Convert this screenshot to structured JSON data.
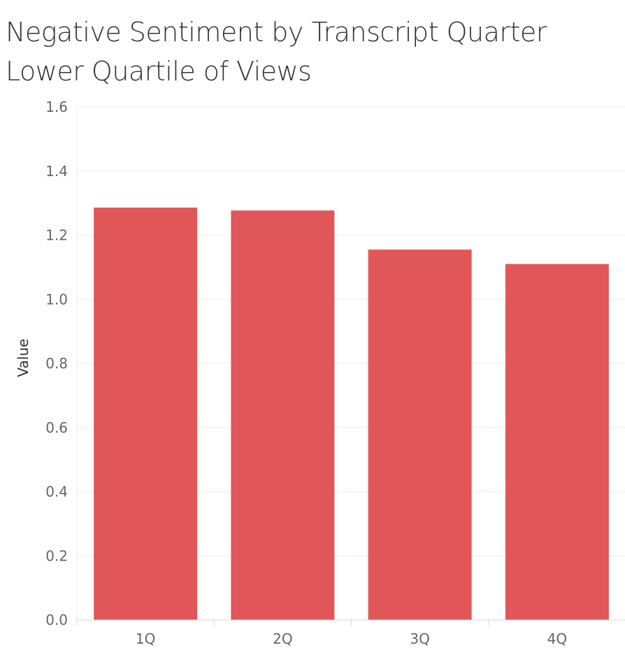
{
  "chart_data": {
    "type": "bar",
    "title": "Negative Sentiment by Transcript Quarter",
    "subtitle": "Lower Quartile of Views",
    "xlabel": "",
    "ylabel": "Value",
    "categories": [
      "1Q",
      "2Q",
      "3Q",
      "4Q"
    ],
    "values": [
      1.286,
      1.277,
      1.155,
      1.11
    ],
    "ylim": [
      0,
      1.6
    ],
    "yticks": [
      0.0,
      0.2,
      0.4,
      0.6,
      0.8,
      1.0,
      1.2,
      1.4,
      1.6
    ],
    "ytick_labels": [
      "0.0",
      "0.2",
      "0.4",
      "0.6",
      "0.8",
      "1.0",
      "1.2",
      "1.4",
      "1.6"
    ],
    "grid": true,
    "colors": {
      "bar": "#E15759",
      "grid": "#EBEBEB",
      "axis": "#D9D9D9"
    }
  }
}
